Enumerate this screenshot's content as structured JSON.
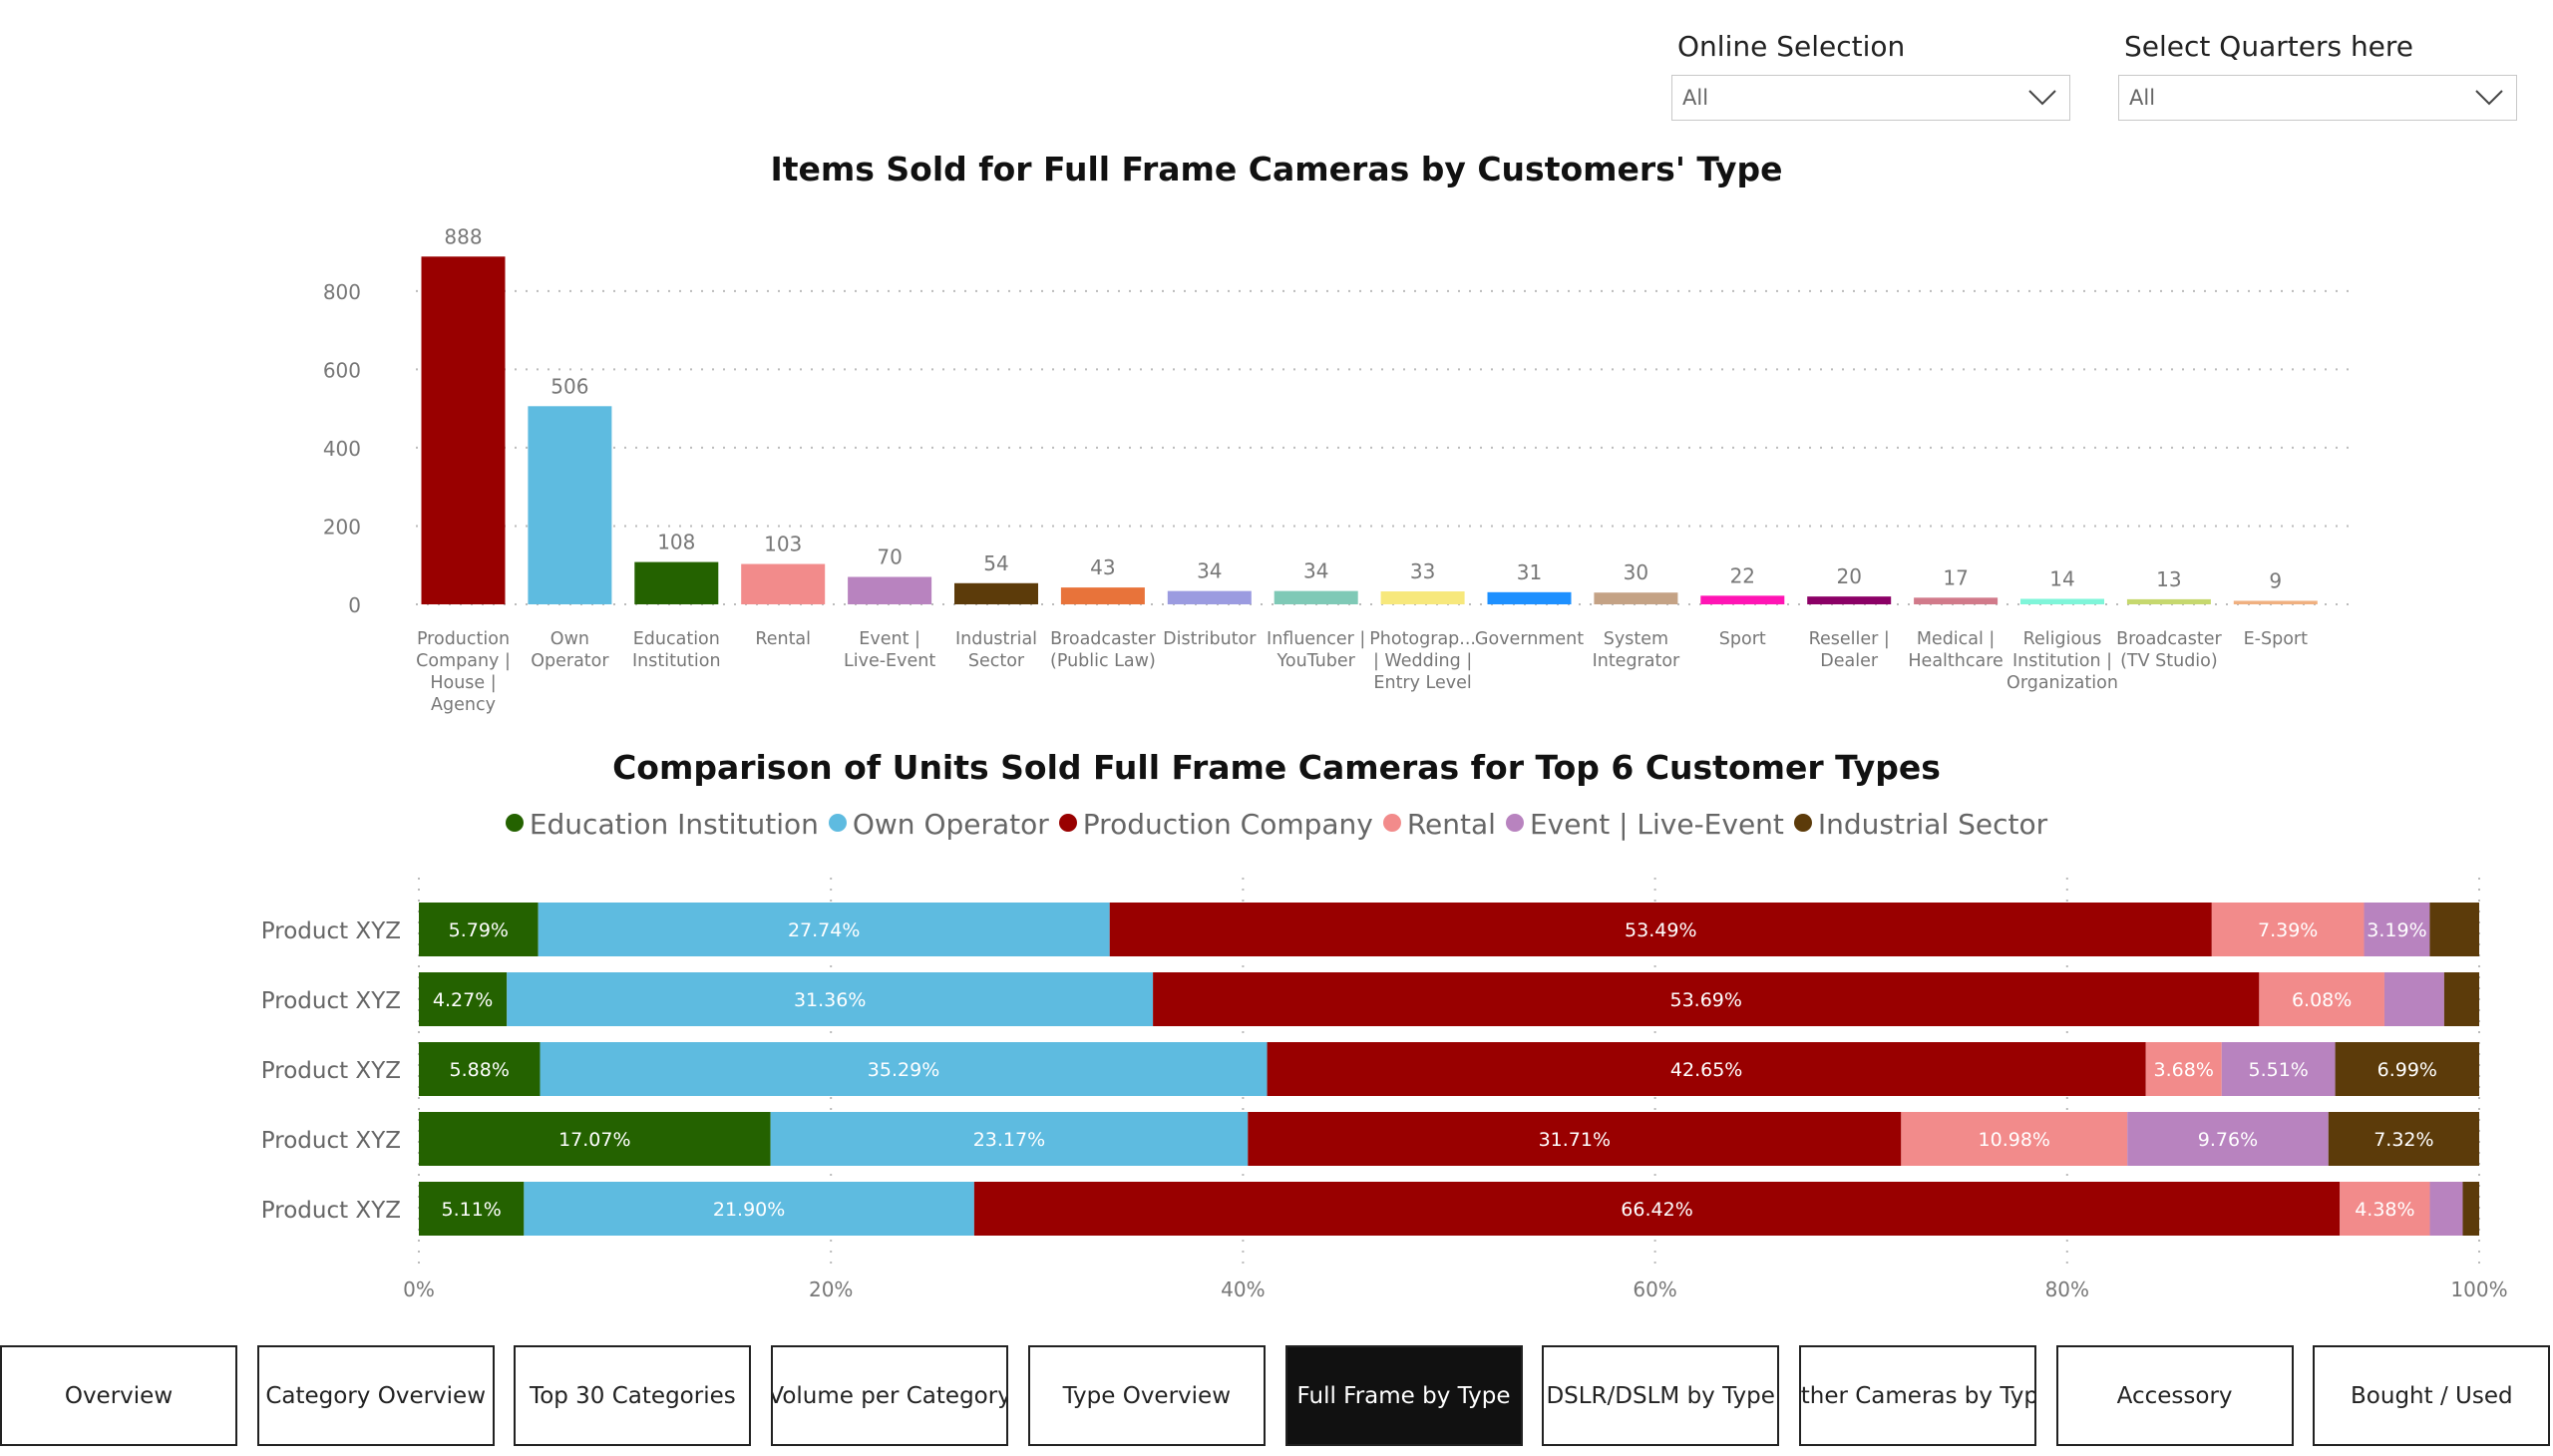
{
  "filters": {
    "online": {
      "label": "Online Selection",
      "value": "All",
      "icon": "chevron-down-icon"
    },
    "quarters": {
      "label": "Select Quarters here",
      "value": "All",
      "icon": "chevron-down-icon"
    }
  },
  "nav": {
    "items": [
      "Overview",
      "Category Overview",
      "Top 30 Categories",
      "Volume per Category",
      "Type Overview",
      "Full Frame by Type",
      "DSLR/DSLM by Type",
      "Other Cameras by Type",
      "Accessory",
      "Bought / Used"
    ],
    "active": 5
  },
  "chart_data": [
    {
      "type": "bar",
      "title": "Items Sold for Full Frame Cameras by Customers' Type",
      "categories": [
        [
          "Production",
          "Company |",
          "House |",
          "Agency"
        ],
        [
          "Own",
          "Operator"
        ],
        [
          "Education",
          "Institution"
        ],
        [
          "Rental"
        ],
        [
          "Event |",
          "Live-Event"
        ],
        [
          "Industrial",
          "Sector"
        ],
        [
          "Broadcaster",
          "(Public Law)"
        ],
        [
          "Distributor"
        ],
        [
          "Influencer |",
          "YouTuber"
        ],
        [
          "Photograp...",
          "| Wedding |",
          "Entry Level"
        ],
        [
          "Government"
        ],
        [
          "System",
          "Integrator"
        ],
        [
          "Sport"
        ],
        [
          "Reseller |",
          "Dealer"
        ],
        [
          "Medical |",
          "Healthcare"
        ],
        [
          "Religious",
          "Institution |",
          "Organization"
        ],
        [
          "Broadcaster",
          "(TV Studio)"
        ],
        [
          "E-Sport"
        ]
      ],
      "values": [
        888,
        506,
        108,
        103,
        70,
        54,
        43,
        34,
        34,
        33,
        31,
        30,
        22,
        20,
        17,
        14,
        13,
        9
      ],
      "colors": [
        "#990000",
        "#5ebbe0",
        "#246200",
        "#f28b8b",
        "#b883bf",
        "#5c3b0a",
        "#e8733a",
        "#9b9be0",
        "#7fc9b6",
        "#f7e87c",
        "#1e90ff",
        "#c4a285",
        "#ff14b4",
        "#8b0066",
        "#d17a8a",
        "#7ff5d9",
        "#c6d86e",
        "#f0b080"
      ],
      "yticks": [
        0,
        200,
        400,
        600,
        800
      ],
      "ylim": [
        0,
        888
      ],
      "grid": true,
      "data_labels": true
    },
    {
      "type": "bar",
      "orientation": "horizontal",
      "stacked": "100%",
      "title": "Comparison of Units Sold Full Frame Cameras for Top 6 Customer Types",
      "legend_position": "top",
      "categories": [
        "Product XYZ",
        "Product XYZ",
        "Product XYZ",
        "Product XYZ",
        "Product XYZ"
      ],
      "series": [
        {
          "name": "Education Institution",
          "color": "#246200",
          "values": [
            5.79,
            4.27,
            5.88,
            17.07,
            5.11
          ],
          "labels": [
            "5.79%",
            "4.27%",
            "5.88%",
            "17.07%",
            "5.11%"
          ]
        },
        {
          "name": "Own Operator",
          "color": "#5ebbe0",
          "values": [
            27.74,
            31.36,
            35.29,
            23.17,
            21.9
          ],
          "labels": [
            "27.74%",
            "31.36%",
            "35.29%",
            "23.17%",
            "21.90%"
          ]
        },
        {
          "name": "Production Company",
          "color": "#990000",
          "values": [
            53.49,
            53.69,
            42.65,
            31.71,
            66.42
          ],
          "labels": [
            "53.49%",
            "53.69%",
            "42.65%",
            "31.71%",
            "66.42%"
          ]
        },
        {
          "name": "Rental",
          "color": "#f28b8b",
          "values": [
            7.39,
            6.08,
            3.68,
            10.98,
            4.38
          ],
          "labels": [
            "7.39%",
            "6.08%",
            "3.68%",
            "10.98%",
            "4.38%"
          ]
        },
        {
          "name": "Event | Live-Event",
          "color": "#b883bf",
          "values": [
            3.19,
            2.9,
            5.51,
            9.76,
            1.6
          ],
          "labels": [
            "3.19%",
            "",
            "5.51%",
            "9.76%",
            ""
          ]
        },
        {
          "name": "Industrial Sector",
          "color": "#5c3b0a",
          "values": [
            2.4,
            1.7,
            6.99,
            7.32,
            0.8
          ],
          "labels": [
            "",
            "",
            "6.99%",
            "7.32%",
            ""
          ]
        }
      ],
      "xticks": [
        "0%",
        "20%",
        "40%",
        "60%",
        "80%",
        "100%"
      ],
      "xlim": [
        0,
        100
      ]
    }
  ]
}
